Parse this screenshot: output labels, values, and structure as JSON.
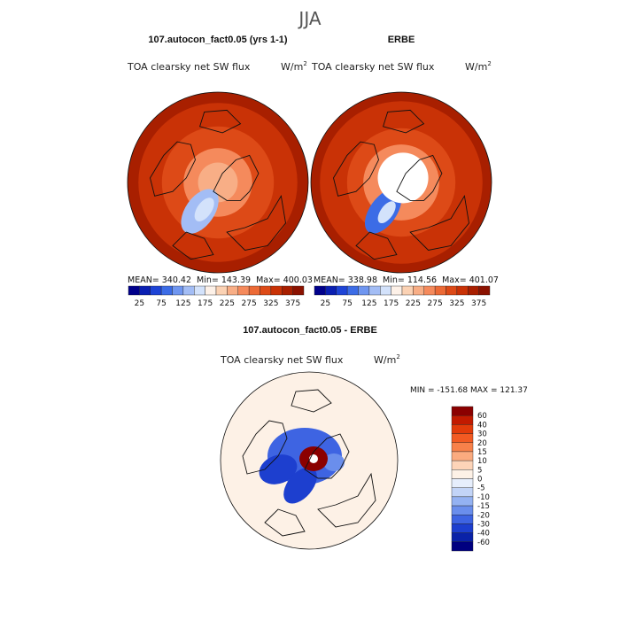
{
  "figure": {
    "season": "JJA",
    "colors": {
      "text": "#111111",
      "coast": "#111111",
      "missing": "#ffffff"
    }
  },
  "panels": {
    "model": {
      "title": "107.autocon_fact0.05 (yrs 1-1)",
      "field": "TOA clearsky net SW flux",
      "units_base": "W/m",
      "units_exp": "2",
      "stats": {
        "mean_label": "MEAN=",
        "mean": "340.42",
        "min_label": "Min=",
        "min": "143.39",
        "max_label": "Max=",
        "max": "400.03"
      }
    },
    "obs": {
      "title": "ERBE",
      "field": "TOA clearsky net SW flux",
      "units_base": "W/m",
      "units_exp": "2",
      "stats": {
        "mean_label": "MEAN=",
        "mean": "338.98",
        "min_label": "Min=",
        "min": "114.56",
        "max_label": "Max=",
        "max": "401.07"
      }
    },
    "diff": {
      "title": "107.autocon_fact0.05 - ERBE",
      "field": "TOA clearsky net SW flux",
      "units_base": "W/m",
      "units_exp": "2",
      "stats_text": "MIN = -151.68 MAX = 121.37"
    }
  },
  "chart_data": [
    {
      "type": "heatmap",
      "subtype": "polar-stereographic map",
      "title": "107.autocon_fact0.05 (yrs 1-1)",
      "season": "JJA",
      "field": "TOA clearsky net SW flux",
      "units": "W/m2",
      "region": "Northern Hemisphere polar cap",
      "mean": 340.42,
      "min": 143.39,
      "max": 400.03,
      "colorbar": {
        "labels": [
          "25",
          "75",
          "125",
          "175",
          "225",
          "275",
          "325",
          "375"
        ],
        "colors": [
          "#00008b",
          "#0a1fb2",
          "#1e44d6",
          "#3c6ce6",
          "#6f96f0",
          "#a3bdf5",
          "#d3e2fb",
          "#fdf1e8",
          "#fbd2b4",
          "#f8ae86",
          "#f58a5c",
          "#ec6a36",
          "#dd4a17",
          "#c93206",
          "#a81f00",
          "#8b1200"
        ]
      },
      "rings": [
        {
          "r": 1.0,
          "level": 14
        },
        {
          "r": 0.88,
          "level": 13
        },
        {
          "r": 0.62,
          "level": 12
        },
        {
          "r": 0.38,
          "level": 10
        },
        {
          "r": 0.22,
          "level": 9
        }
      ],
      "anomalies": [
        {
          "shape": "ellipse",
          "x": -0.2,
          "y": 0.32,
          "rx": 0.16,
          "ry": 0.28,
          "rot": 35,
          "level": 5
        },
        {
          "shape": "ellipse",
          "x": -0.15,
          "y": 0.3,
          "rx": 0.08,
          "ry": 0.15,
          "rot": 35,
          "level": 6
        }
      ]
    },
    {
      "type": "heatmap",
      "subtype": "polar-stereographic map",
      "title": "ERBE",
      "season": "JJA",
      "field": "TOA clearsky net SW flux",
      "units": "W/m2",
      "region": "Northern Hemisphere polar cap",
      "mean": 338.98,
      "min": 114.56,
      "max": 401.07,
      "colorbar": {
        "labels": [
          "25",
          "75",
          "125",
          "175",
          "225",
          "275",
          "325",
          "375"
        ],
        "colors": [
          "#00008b",
          "#0a1fb2",
          "#1e44d6",
          "#3c6ce6",
          "#6f96f0",
          "#a3bdf5",
          "#d3e2fb",
          "#fdf1e8",
          "#fbd2b4",
          "#f8ae86",
          "#f58a5c",
          "#ec6a36",
          "#dd4a17",
          "#c93206",
          "#a81f00",
          "#8b1200"
        ]
      },
      "rings": [
        {
          "r": 1.0,
          "level": 14
        },
        {
          "r": 0.9,
          "level": 13
        },
        {
          "r": 0.6,
          "level": 12
        },
        {
          "r": 0.42,
          "level": 10
        }
      ],
      "anomalies": [
        {
          "shape": "ellipse",
          "x": -0.2,
          "y": 0.32,
          "rx": 0.15,
          "ry": 0.28,
          "rot": 35,
          "level": 3
        },
        {
          "shape": "ellipse",
          "x": -0.16,
          "y": 0.33,
          "rx": 0.07,
          "ry": 0.14,
          "rot": 35,
          "level": 6
        },
        {
          "shape": "missing",
          "x": 0.02,
          "y": -0.05,
          "r": 0.28
        }
      ]
    },
    {
      "type": "heatmap",
      "subtype": "polar-stereographic map",
      "title": "107.autocon_fact0.05 - ERBE",
      "season": "JJA",
      "field": "TOA clearsky net SW flux",
      "units": "W/m2",
      "region": "Northern Hemisphere polar cap",
      "min": -151.68,
      "max": 121.37,
      "colorbar": {
        "labels": [
          "60",
          "40",
          "30",
          "20",
          "15",
          "10",
          "5",
          "0",
          "-5",
          "-10",
          "-15",
          "-20",
          "-30",
          "-40",
          "-60"
        ],
        "colors": [
          "#8b0000",
          "#c21a00",
          "#e23b0a",
          "#f25a22",
          "#f8814a",
          "#fbab7f",
          "#fdd4b8",
          "#fdf1e6",
          "#e6eefc",
          "#c2d4f7",
          "#94b2f2",
          "#6a8eec",
          "#3e64e2",
          "#1d3fcf",
          "#0a22a8",
          "#000080"
        ]
      },
      "rings": [
        {
          "r": 1.0,
          "level": 7
        },
        {
          "r": 0.62,
          "level": 7
        }
      ],
      "anomalies": [
        {
          "shape": "ellipse",
          "x": -0.05,
          "y": -0.05,
          "rx": 0.42,
          "ry": 0.32,
          "rot": 0,
          "level": 12
        },
        {
          "shape": "ellipse",
          "x": -0.35,
          "y": 0.1,
          "rx": 0.22,
          "ry": 0.16,
          "rot": -20,
          "level": 13
        },
        {
          "shape": "ellipse",
          "x": 0.28,
          "y": 0.02,
          "rx": 0.12,
          "ry": 0.1,
          "rot": 0,
          "level": 11
        },
        {
          "shape": "ellipse",
          "x": -0.1,
          "y": 0.28,
          "rx": 0.14,
          "ry": 0.24,
          "rot": 40,
          "level": 13
        },
        {
          "shape": "ellipse",
          "x": 0.05,
          "y": -0.02,
          "rx": 0.16,
          "ry": 0.14,
          "rot": 0,
          "level": 0
        },
        {
          "shape": "missing",
          "x": 0.05,
          "y": -0.02,
          "r": 0.05
        }
      ]
    }
  ]
}
